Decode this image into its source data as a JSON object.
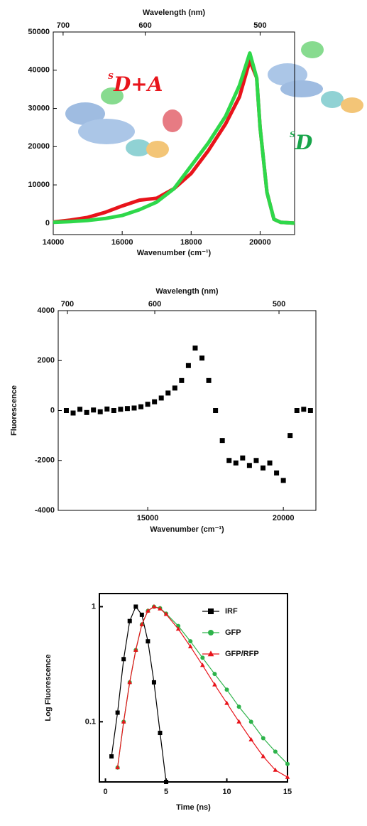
{
  "chart_data": [
    {
      "type": "line",
      "x2label": "Wavelength (nm)",
      "xlabel": "Wavenumber (cm⁻¹)",
      "xlim": [
        14000,
        21000
      ],
      "xticks": [
        14000,
        16000,
        18000,
        20000
      ],
      "x2ticks": [
        {
          "value": 14286,
          "label": "700"
        },
        {
          "value": 16667,
          "label": "600"
        },
        {
          "value": 20000,
          "label": "500"
        }
      ],
      "ylim": [
        -3000,
        50000
      ],
      "yticks": [
        0,
        10000,
        20000,
        30000,
        40000,
        50000
      ],
      "x": [
        14000,
        14500,
        15000,
        15500,
        16000,
        16500,
        17000,
        17500,
        18000,
        18500,
        19000,
        19400,
        19700,
        19900,
        20000,
        20200,
        20400,
        20600,
        21000
      ],
      "series": [
        {
          "color": "#e8141b",
          "values": [
            300,
            800,
            1500,
            2800,
            4500,
            6000,
            6500,
            9000,
            13000,
            19000,
            26000,
            33000,
            42500,
            38000,
            25000,
            8000,
            1000,
            200,
            0
          ]
        },
        {
          "color": "#2ed84a",
          "values": [
            200,
            400,
            700,
            1200,
            2000,
            3500,
            5500,
            9000,
            15000,
            21000,
            28000,
            36000,
            44500,
            38000,
            25000,
            8000,
            1000,
            200,
            0
          ]
        }
      ],
      "annotations": [
        {
          "text": "S",
          "sub": "D+A",
          "color": "#e8141b"
        },
        {
          "text": "S",
          "sub": "D",
          "color": "#18a54a"
        }
      ]
    },
    {
      "type": "scatter",
      "x2label": "Wavelength (nm)",
      "xlabel": "Wavenumber (cm⁻¹)",
      "ylabel": "Fluorescence",
      "xlim": [
        11700,
        21200
      ],
      "xticks": [
        15000,
        20000
      ],
      "x2ticks": [
        {
          "value": 12040,
          "label": "700"
        },
        {
          "value": 15260,
          "label": "600"
        },
        {
          "value": 19840,
          "label": "500"
        }
      ],
      "ylim": [
        -4000,
        4000
      ],
      "yticks": [
        -4000,
        -2000,
        0,
        2000,
        4000
      ],
      "x": [
        12000,
        12250,
        12500,
        12750,
        13000,
        13250,
        13500,
        13750,
        14000,
        14250,
        14500,
        14750,
        15000,
        15250,
        15500,
        15750,
        16000,
        16250,
        16500,
        16750,
        17000,
        17250,
        17500,
        17750,
        18000,
        18250,
        18500,
        18750,
        19000,
        19250,
        19500,
        19750,
        20000,
        20250,
        20500,
        20750,
        21000
      ],
      "series": [
        {
          "color": "#000000",
          "marker": "square",
          "values": [
            0,
            -100,
            50,
            -80,
            20,
            -50,
            60,
            0,
            50,
            80,
            100,
            150,
            250,
            350,
            500,
            700,
            900,
            1200,
            1800,
            2500,
            2100,
            1200,
            0,
            -1200,
            -2000,
            -2100,
            -1900,
            -2200,
            -2000,
            -2300,
            -2100,
            -2500,
            -2800,
            -1000,
            0,
            50,
            0
          ]
        }
      ]
    },
    {
      "type": "line",
      "xlabel": "Time (ns)",
      "ylabel": "Log Fluorescence",
      "ylog": true,
      "legend": "upper right",
      "xlim": [
        -0.5,
        15
      ],
      "xticks": [
        0,
        5,
        10,
        15
      ],
      "ylim": [
        0.03,
        1.3
      ],
      "yticks": [
        0.1,
        1
      ],
      "x": [
        0.5,
        1,
        1.5,
        2,
        2.5,
        3,
        3.5,
        4,
        4.5,
        5,
        6,
        7,
        8,
        9,
        10,
        11,
        12,
        13,
        14,
        15
      ],
      "series": [
        {
          "name": "IRF",
          "color": "#000000",
          "marker": "square",
          "values": [
            0.05,
            0.12,
            0.35,
            0.75,
            1,
            0.85,
            0.5,
            0.22,
            0.08,
            0.03,
            null,
            null,
            null,
            null,
            null,
            null,
            null,
            null,
            null,
            null
          ]
        },
        {
          "name": "GFP",
          "color": "#2db34a",
          "marker": "circle",
          "values": [
            null,
            0.04,
            0.1,
            0.22,
            0.42,
            0.7,
            0.92,
            1,
            0.97,
            0.87,
            0.68,
            0.5,
            0.36,
            0.26,
            0.19,
            0.135,
            0.1,
            0.072,
            0.055,
            0.043
          ]
        },
        {
          "name": "GFP/RFP",
          "color": "#e8141b",
          "marker": "triangle",
          "values": [
            null,
            0.04,
            0.1,
            0.22,
            0.42,
            0.7,
            0.92,
            1,
            0.96,
            0.86,
            0.64,
            0.45,
            0.31,
            0.21,
            0.145,
            0.1,
            0.07,
            0.05,
            0.038,
            0.033
          ]
        }
      ]
    }
  ]
}
